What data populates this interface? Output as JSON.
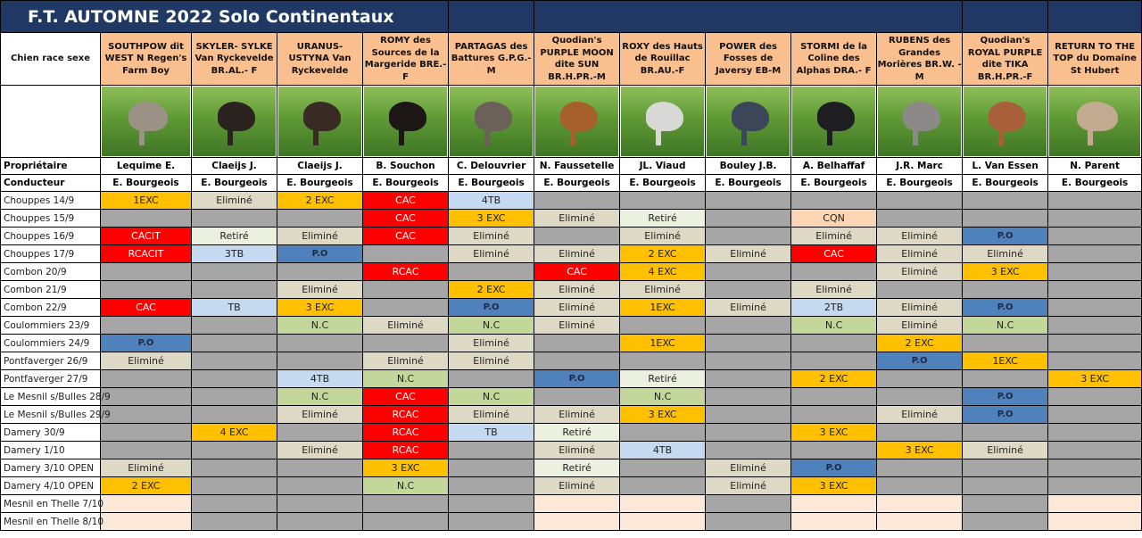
{
  "title": "F.T. AUTOMNE 2022 Solo Continentaux",
  "labels": {
    "dog": "Chien race sexe",
    "owner": "Propriétaire",
    "handler": "Conducteur"
  },
  "dogs": [
    {
      "name": "SOUTHPOW dit WEST N Regen's Farm Boy",
      "owner": "Lequime E.",
      "handler": "E. Bourgeois",
      "coat": "#9b9184"
    },
    {
      "name": "SKYLER- SYLKE Van Ryckevelde BR.AL.- F",
      "owner": "Claeijs J.",
      "handler": "E. Bourgeois",
      "coat": "#2b2320"
    },
    {
      "name": "URANUS- USTYNA Van Ryckevelde",
      "owner": "Claeijs J.",
      "handler": "E. Bourgeois",
      "coat": "#3a2a24"
    },
    {
      "name": "ROMY des Sources de la Margeride BRE.-F",
      "owner": "B. Souchon",
      "handler": "E. Bourgeois",
      "coat": "#1c1614"
    },
    {
      "name": "PARTAGAS des Battures G.P.G.-M",
      "owner": "C. Delouvrier",
      "handler": "E. Bourgeois",
      "coat": "#6b6159"
    },
    {
      "name": "Quodian's PURPLE MOON dite SUN BR.H.PR.-M",
      "owner": "N. Faussetelle",
      "handler": "E. Bourgeois",
      "coat": "#a5602c"
    },
    {
      "name": "ROXY des Hauts de Rouillac BR.AU.-F",
      "owner": "JL. Viaud",
      "handler": "E. Bourgeois",
      "coat": "#d8d8d4"
    },
    {
      "name": "POWER des Fosses de Javersy EB-M",
      "owner": "Bouley J.B.",
      "handler": "E. Bourgeois",
      "coat": "#3b4658"
    },
    {
      "name": "STORMI de la Coline des Alphas DRA.- F",
      "owner": "A. Belhaffaf",
      "handler": "E. Bourgeois",
      "coat": "#1e1e22"
    },
    {
      "name": "RUBENS des Grandes Morières BR.W. - M",
      "owner": "J.R. Marc",
      "handler": "E. Bourgeois",
      "coat": "#8c8a86"
    },
    {
      "name": "Quodian's ROYAL PURPLE dite TIKA BR.H.PR.-F",
      "owner": "L. Van Essen",
      "handler": "E. Bourgeois",
      "coat": "#a8603a"
    },
    {
      "name": "RETURN TO THE TOP du Domaine St Hubert",
      "owner": "N. Parent",
      "handler": "E. Bourgeois",
      "coat": "#c2ab90"
    }
  ],
  "rows": [
    {
      "event": "Chouppes 14/9",
      "cells": [
        "1EXC",
        "Eliminé",
        "2 EXC",
        "CAC",
        "4TB",
        null,
        null,
        null,
        null,
        null,
        null,
        null
      ]
    },
    {
      "event": "Chouppes 15/9",
      "cells": [
        null,
        null,
        null,
        "CAC",
        "3 EXC",
        "Eliminé",
        "Retiré",
        null,
        "CQN",
        null,
        null,
        null
      ]
    },
    {
      "event": "Chouppes 16/9",
      "cells": [
        "CACIT",
        "Retiré",
        "Eliminé",
        "CAC",
        "Eliminé",
        null,
        "Eliminé",
        null,
        "Eliminé",
        "Eliminé",
        "P.O",
        null
      ]
    },
    {
      "event": "Chouppes 17/9",
      "cells": [
        "RCACIT",
        "3TB",
        "P.O",
        null,
        "Eliminé",
        "Eliminé",
        "2 EXC",
        "Eliminé",
        "CAC",
        "Eliminé",
        "Eliminé",
        null
      ]
    },
    {
      "event": "Combon 20/9",
      "cells": [
        null,
        null,
        null,
        "RCAC",
        null,
        "CAC",
        "4 EXC",
        null,
        null,
        "Eliminé",
        "3 EXC",
        null
      ]
    },
    {
      "event": "Combon 21/9",
      "cells": [
        null,
        null,
        "Eliminé",
        null,
        "2 EXC",
        "Eliminé",
        "Eliminé",
        null,
        "Eliminé",
        null,
        null,
        null
      ]
    },
    {
      "event": "Combon 22/9",
      "cells": [
        "CAC",
        "TB",
        "3 EXC",
        null,
        "P.O",
        "Eliminé",
        "1EXC",
        "Eliminé",
        "2TB",
        "Eliminé",
        "P.O",
        null
      ]
    },
    {
      "event": "Coulommiers 23/9",
      "cells": [
        null,
        null,
        "N.C",
        "Eliminé",
        "N.C",
        "Eliminé",
        null,
        null,
        "N.C",
        "Eliminé",
        "N.C",
        null
      ]
    },
    {
      "event": "Coulommiers 24/9",
      "cells": [
        "P.O",
        null,
        null,
        null,
        "Eliminé",
        null,
        "1EXC",
        null,
        null,
        "2 EXC",
        null,
        null
      ]
    },
    {
      "event": "Pontfaverger 26/9",
      "cells": [
        "Eliminé",
        null,
        null,
        "Eliminé",
        "Eliminé",
        null,
        null,
        null,
        null,
        "P.O",
        "1EXC",
        null
      ]
    },
    {
      "event": "Pontfaverger 27/9",
      "cells": [
        null,
        null,
        "4TB",
        "N.C",
        null,
        "P.O",
        "Retiré",
        null,
        "2 EXC",
        null,
        null,
        "3 EXC"
      ]
    },
    {
      "event": "Le Mesnil s/Bulles 28/9",
      "cells": [
        null,
        null,
        "N.C",
        "CAC",
        "N.C",
        null,
        "N.C",
        null,
        null,
        null,
        "P.O",
        null
      ]
    },
    {
      "event": "Le Mesnil s/Bulles 29/9",
      "cells": [
        null,
        null,
        "Eliminé",
        "RCAC",
        "Eliminé",
        "Eliminé",
        "3 EXC",
        null,
        null,
        "Eliminé",
        "P.O",
        null
      ]
    },
    {
      "event": "Damery 30/9",
      "cells": [
        null,
        "4 EXC",
        null,
        "RCAC",
        "TB",
        "Retiré",
        null,
        null,
        "3 EXC",
        null,
        null,
        null
      ]
    },
    {
      "event": "Damery 1/10",
      "cells": [
        null,
        null,
        "Eliminé",
        "RCAC",
        null,
        "Eliminé",
        "4TB",
        null,
        null,
        "3 EXC",
        "Eliminé",
        null
      ]
    },
    {
      "event": "Damery 3/10 OPEN",
      "cells": [
        "Eliminé",
        null,
        null,
        "3 EXC",
        null,
        "Retiré",
        null,
        "Eliminé",
        "P.O",
        null,
        null,
        null
      ]
    },
    {
      "event": "Damery 4/10 OPEN",
      "cells": [
        "2 EXC",
        null,
        null,
        "N.C",
        null,
        "Eliminé",
        null,
        "Eliminé",
        "3 EXC",
        null,
        null,
        null
      ]
    },
    {
      "event": "Mesnil en Thelle 7/10",
      "cells": [
        "",
        null,
        null,
        null,
        null,
        "",
        "",
        null,
        "",
        "",
        null,
        ""
      ]
    },
    {
      "event": "Mesnil en Thelle 8/10",
      "cells": [
        "",
        null,
        null,
        null,
        null,
        "",
        "",
        null,
        "",
        "",
        null,
        ""
      ]
    }
  ],
  "colors": {
    "header": "#203864",
    "name_bg": "#fabf8f",
    "gray": "#a6a6a6",
    "red": "#ff0000",
    "exc": "#ffc000",
    "po": "#4f81bd"
  }
}
